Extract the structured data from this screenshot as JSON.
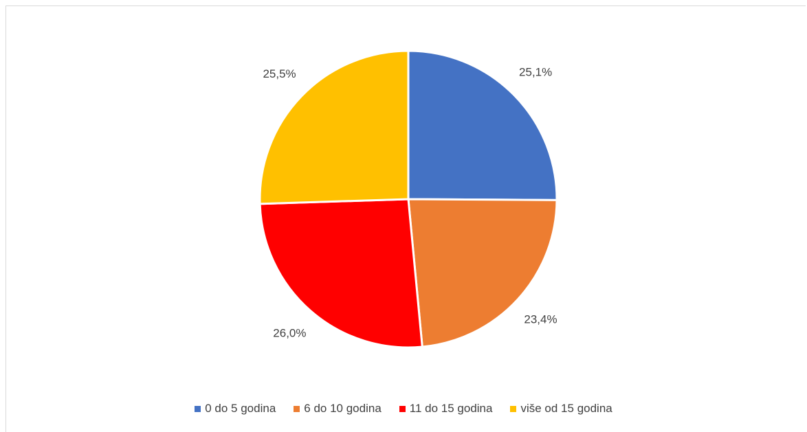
{
  "chart_data": {
    "type": "pie",
    "title": "",
    "start_angle_deg": 0,
    "direction": "clockwise",
    "legend_position": "bottom",
    "slices": [
      {
        "name": "0 do 5 godina",
        "value": 25.1,
        "label": "25,1%",
        "color": "#4472C4"
      },
      {
        "name": "6 do 10 godina",
        "value": 23.4,
        "label": "23,4%",
        "color": "#ED7D31"
      },
      {
        "name": "11 do 15 godina",
        "value": 26.0,
        "label": "26,0%",
        "color": "#FF0000"
      },
      {
        "name": "više od 15 godina",
        "value": 25.5,
        "label": "25,5%",
        "color": "#FFC000"
      }
    ]
  }
}
